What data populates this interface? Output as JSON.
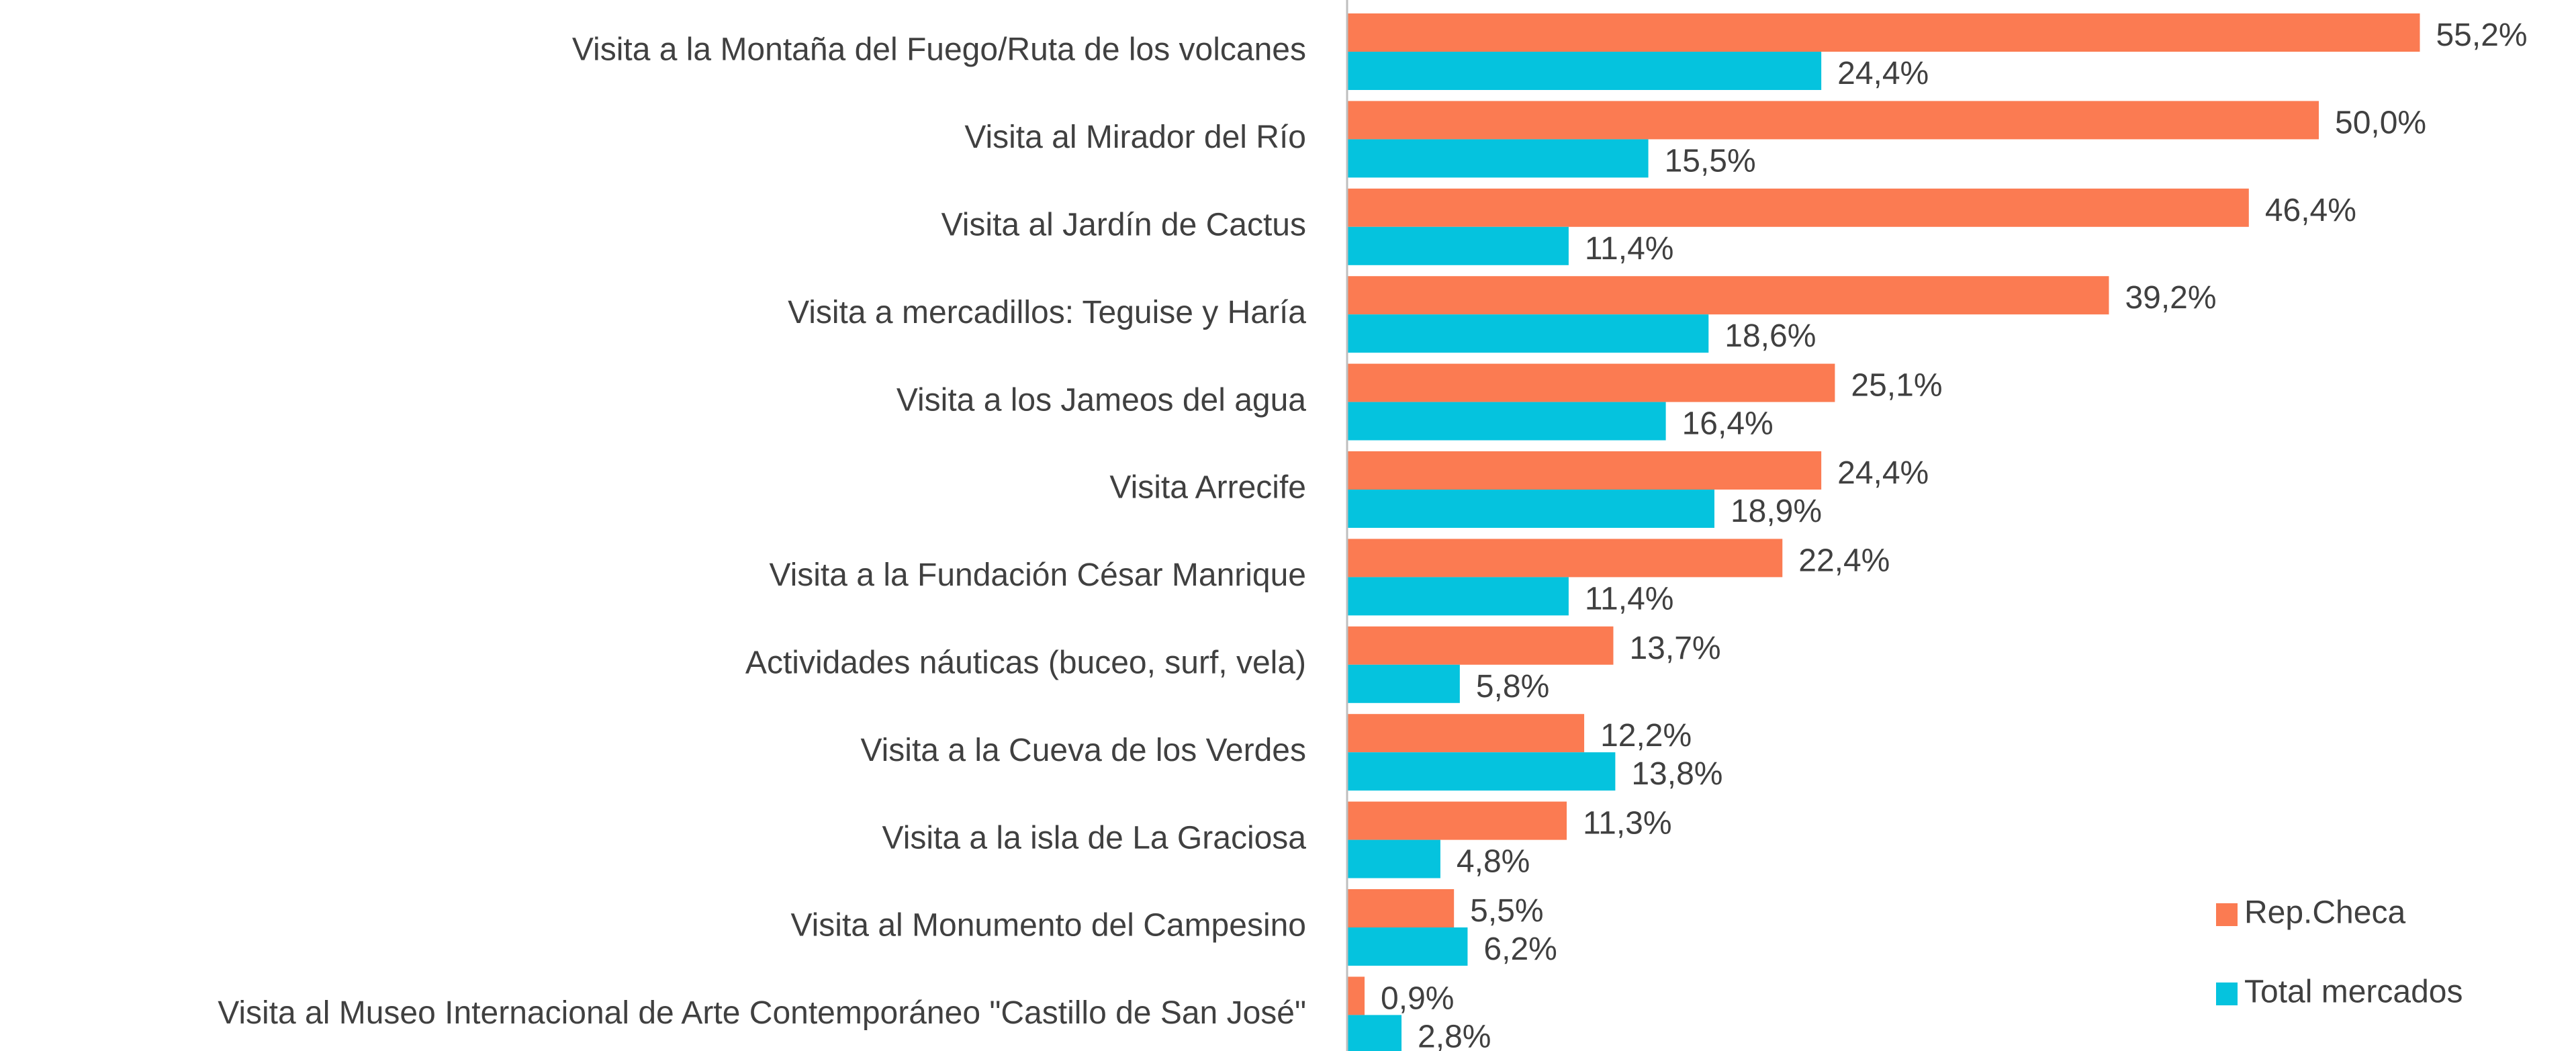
{
  "chart_data": {
    "type": "hbar",
    "categories": [
      "Visita a la Montaña del Fuego/Ruta de los volcanes",
      "Visita al Mirador del Río",
      "Visita al Jardín de Cactus",
      "Visita a mercadillos: Teguise y Haría",
      "Visita a los Jameos del agua",
      "Visita Arrecife",
      "Visita a la Fundación César Manrique",
      "Actividades náuticas (buceo, surf, vela)",
      "Visita a la Cueva de los Verdes",
      "Visita a la isla de La Graciosa",
      "Visita al Monumento del Campesino",
      "Visita al Museo Internacional de Arte Contemporáneo \"Castillo de San José\""
    ],
    "series": [
      {
        "name": "Rep.Checa",
        "color": "#fb7b52",
        "values": [
          55.2,
          50.0,
          46.4,
          39.2,
          25.1,
          24.4,
          22.4,
          13.7,
          12.2,
          11.3,
          5.5,
          0.9
        ],
        "value_labels": [
          "55,2%",
          "50,0%",
          "46,4%",
          "39,2%",
          "25,1%",
          "24,4%",
          "22,4%",
          "13,7%",
          "12,2%",
          "11,3%",
          "5,5%",
          "0,9%"
        ]
      },
      {
        "name": "Total mercados",
        "color": "#05c3de",
        "values": [
          24.4,
          15.5,
          11.4,
          18.6,
          16.4,
          18.9,
          11.4,
          5.8,
          13.8,
          4.8,
          6.2,
          2.8
        ],
        "value_labels": [
          "24,4%",
          "15,5%",
          "11,4%",
          "18,6%",
          "16,4%",
          "18,9%",
          "11,4%",
          "5,8%",
          "13,8%",
          "4,8%",
          "6,2%",
          "2,8%"
        ]
      }
    ],
    "legend": "lower right"
  }
}
